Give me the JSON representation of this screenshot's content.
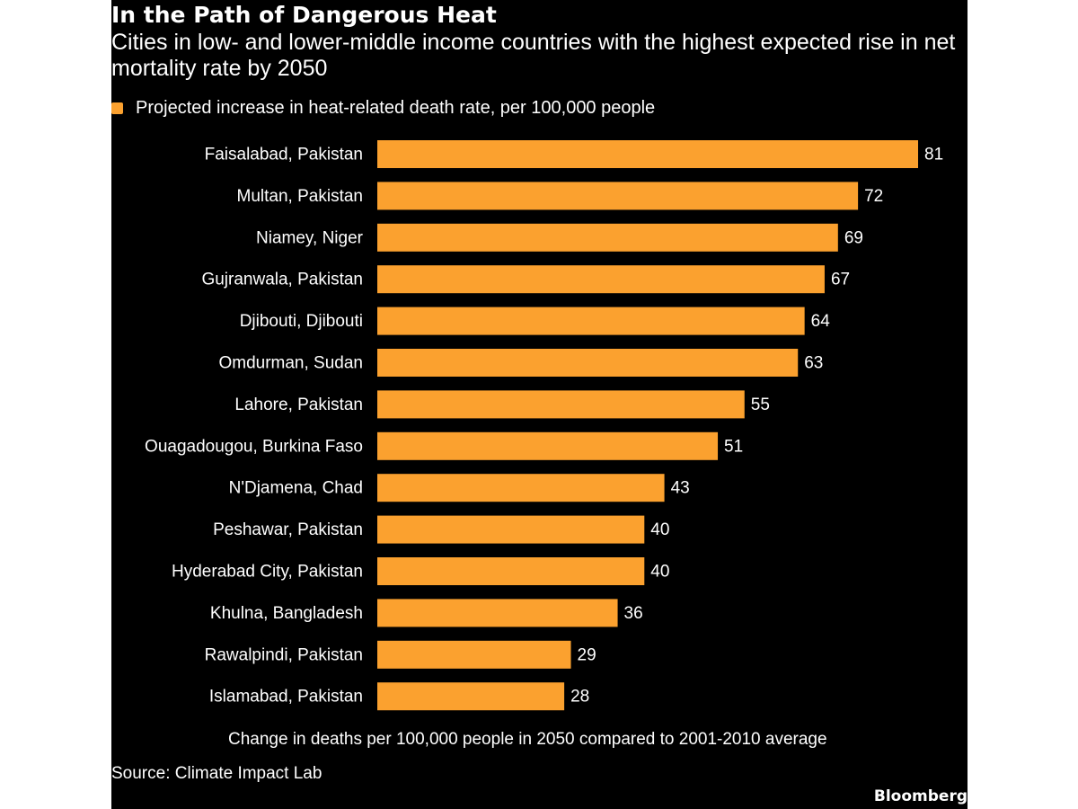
{
  "colors": {
    "background": "#000000",
    "bar": "#FBA12F",
    "text": "#FFFFFF"
  },
  "chart_data": {
    "type": "bar",
    "orientation": "horizontal",
    "title": "In the Path of Dangerous Heat",
    "subtitle": "Cities in low- and lower-middle income countries with the highest expected rise in net mortality rate by 2050",
    "legend": "Projected increase in heat-related death rate, per 100,000 people",
    "legend_position": "top-left",
    "xlabel": "Change in deaths per 100,000 people in 2050 compared to 2001-2010 average",
    "grid": false,
    "xlim": [
      0,
      81
    ],
    "categories": [
      "Faisalabad, Pakistan",
      "Multan, Pakistan",
      "Niamey, Niger",
      "Gujranwala, Pakistan",
      "Djibouti, Djibouti",
      "Omdurman, Sudan",
      "Lahore, Pakistan",
      "Ouagadougou, Burkina Faso",
      "N'Djamena, Chad",
      "Peshawar, Pakistan",
      "Hyderabad City, Pakistan",
      "Khulna, Bangladesh",
      "Rawalpindi, Pakistan",
      "Islamabad, Pakistan"
    ],
    "values": [
      81,
      72,
      69,
      67,
      64,
      63,
      55,
      51,
      43,
      40,
      40,
      36,
      29,
      28
    ],
    "source": "Source: Climate Impact Lab"
  },
  "branding": {
    "logo_text": "Bloomberg"
  }
}
